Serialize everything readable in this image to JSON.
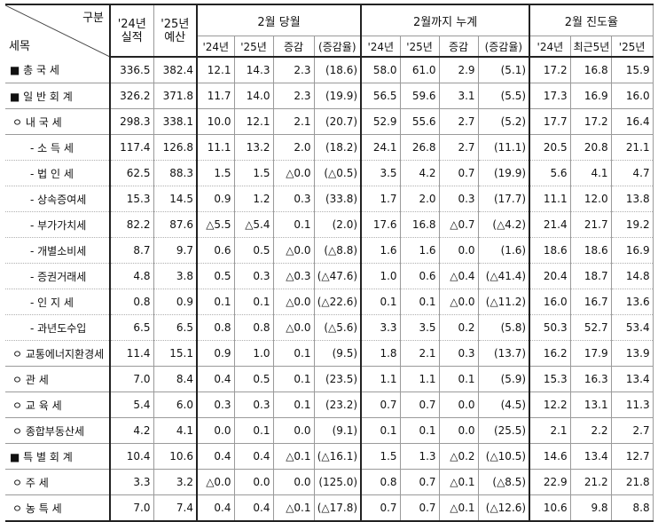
{
  "header": {
    "corner_top": "구분",
    "corner_bottom": "세목",
    "col_2024_l1": "'24년",
    "col_2024_l2": "실적",
    "col_2025_l1": "'25년",
    "col_2025_l2": "예산",
    "group_feb": "2월 당월",
    "group_cum": "2월까지 누계",
    "group_progress": "2월 진도율",
    "feb_sub": [
      "'24년",
      "'25년",
      "증감",
      "(증감율)"
    ],
    "cum_sub": [
      "'24년",
      "'25년",
      "증감",
      "(증감율)"
    ],
    "prog_sub": [
      "'24년",
      "최근5년",
      "'25년"
    ]
  },
  "rows": [
    {
      "label": "■ 총 국 세",
      "indent": 0,
      "v": [
        "336.5",
        "382.4",
        "12.1",
        "14.3",
        "2.3",
        "(18.6)",
        "58.0",
        "61.0",
        "2.9",
        "(5.1)",
        "17.2",
        "16.8",
        "15.9"
      ]
    },
    {
      "label": "■ 일 반 회 계",
      "indent": 0,
      "v": [
        "326.2",
        "371.8",
        "11.7",
        "14.0",
        "2.3",
        "(19.9)",
        "56.5",
        "59.6",
        "3.1",
        "(5.5)",
        "17.3",
        "16.9",
        "16.0"
      ]
    },
    {
      "label": "ㅇ 내   국   세",
      "indent": 1,
      "v": [
        "298.3",
        "338.1",
        "10.0",
        "12.1",
        "2.1",
        "(20.7)",
        "52.9",
        "55.6",
        "2.7",
        "(5.2)",
        "17.7",
        "17.2",
        "16.4"
      ]
    },
    {
      "label": "- 소   득   세",
      "indent": 2,
      "v": [
        "117.4",
        "126.8",
        "11.1",
        "13.2",
        "2.0",
        "(18.2)",
        "24.1",
        "26.8",
        "2.7",
        "(11.1)",
        "20.5",
        "20.8",
        "21.1"
      ]
    },
    {
      "label": "- 법   인   세",
      "indent": 2,
      "v": [
        "62.5",
        "88.3",
        "1.5",
        "1.5",
        "△0.0",
        "(△0.5)",
        "3.5",
        "4.2",
        "0.7",
        "(19.9)",
        "5.6",
        "4.1",
        "4.7"
      ]
    },
    {
      "label": "- 상속증여세",
      "indent": 2,
      "v": [
        "15.3",
        "14.5",
        "0.9",
        "1.2",
        "0.3",
        "(33.8)",
        "1.7",
        "2.0",
        "0.3",
        "(17.7)",
        "11.1",
        "12.0",
        "13.8"
      ]
    },
    {
      "label": "- 부가가치세",
      "indent": 2,
      "v": [
        "82.2",
        "87.6",
        "△5.5",
        "△5.4",
        "0.1",
        "(2.0)",
        "17.6",
        "16.8",
        "△0.7",
        "(△4.2)",
        "21.4",
        "21.7",
        "19.2"
      ]
    },
    {
      "label": "- 개별소비세",
      "indent": 2,
      "v": [
        "8.7",
        "9.7",
        "0.6",
        "0.5",
        "△0.0",
        "(△8.8)",
        "1.6",
        "1.6",
        "0.0",
        "(1.6)",
        "18.6",
        "18.6",
        "16.9"
      ]
    },
    {
      "label": "- 증권거래세",
      "indent": 2,
      "v": [
        "4.8",
        "3.8",
        "0.5",
        "0.3",
        "△0.3",
        "(△47.6)",
        "1.0",
        "0.6",
        "△0.4",
        "(△41.4)",
        "20.4",
        "18.7",
        "14.8"
      ]
    },
    {
      "label": "- 인   지   세",
      "indent": 2,
      "v": [
        "0.8",
        "0.9",
        "0.1",
        "0.1",
        "△0.0",
        "(△22.6)",
        "0.1",
        "0.1",
        "△0.0",
        "(△11.2)",
        "16.0",
        "16.7",
        "13.6"
      ]
    },
    {
      "label": "- 과년도수입",
      "indent": 2,
      "last": true,
      "v": [
        "6.5",
        "6.5",
        "0.8",
        "0.8",
        "△0.0",
        "(△5.6)",
        "3.3",
        "3.5",
        "0.2",
        "(5.8)",
        "50.3",
        "52.7",
        "53.4"
      ]
    },
    {
      "label": "ㅇ 교통에너지환경세",
      "indent": 1,
      "v": [
        "11.4",
        "15.1",
        "0.9",
        "1.0",
        "0.1",
        "(9.5)",
        "1.8",
        "2.1",
        "0.3",
        "(13.7)",
        "16.2",
        "17.9",
        "13.9"
      ]
    },
    {
      "label": "ㅇ 관         세",
      "indent": 1,
      "v": [
        "7.0",
        "8.4",
        "0.4",
        "0.5",
        "0.1",
        "(23.5)",
        "1.1",
        "1.1",
        "0.1",
        "(5.9)",
        "15.3",
        "16.3",
        "13.4"
      ]
    },
    {
      "label": "ㅇ 교    육    세",
      "indent": 1,
      "v": [
        "5.4",
        "6.0",
        "0.3",
        "0.3",
        "0.1",
        "(23.2)",
        "0.7",
        "0.7",
        "0.0",
        "(4.5)",
        "12.2",
        "13.1",
        "11.3"
      ]
    },
    {
      "label": "ㅇ 종합부동산세",
      "indent": 1,
      "v": [
        "4.2",
        "4.1",
        "0.0",
        "0.1",
        "0.0",
        "(9.1)",
        "0.1",
        "0.1",
        "0.0",
        "(25.5)",
        "2.1",
        "2.2",
        "2.7"
      ]
    },
    {
      "label": "■ 특 별 회 계",
      "indent": 0,
      "v": [
        "10.4",
        "10.6",
        "0.4",
        "0.4",
        "△0.1",
        "(△16.1)",
        "1.5",
        "1.3",
        "△0.2",
        "(△10.5)",
        "14.6",
        "13.4",
        "12.7"
      ]
    },
    {
      "label": "ㅇ 주          세",
      "indent": 1,
      "v": [
        "3.3",
        "3.2",
        "△0.0",
        "0.0",
        "0.0",
        "(125.0)",
        "0.8",
        "0.7",
        "△0.1",
        "(△8.5)",
        "22.9",
        "21.2",
        "21.8"
      ]
    },
    {
      "label": "ㅇ 농    특    세",
      "indent": 1,
      "v": [
        "7.0",
        "7.4",
        "0.4",
        "0.4",
        "△0.1",
        "(△17.8)",
        "0.7",
        "0.7",
        "△0.1",
        "(△12.6)",
        "10.6",
        "9.8",
        "8.8"
      ]
    }
  ]
}
